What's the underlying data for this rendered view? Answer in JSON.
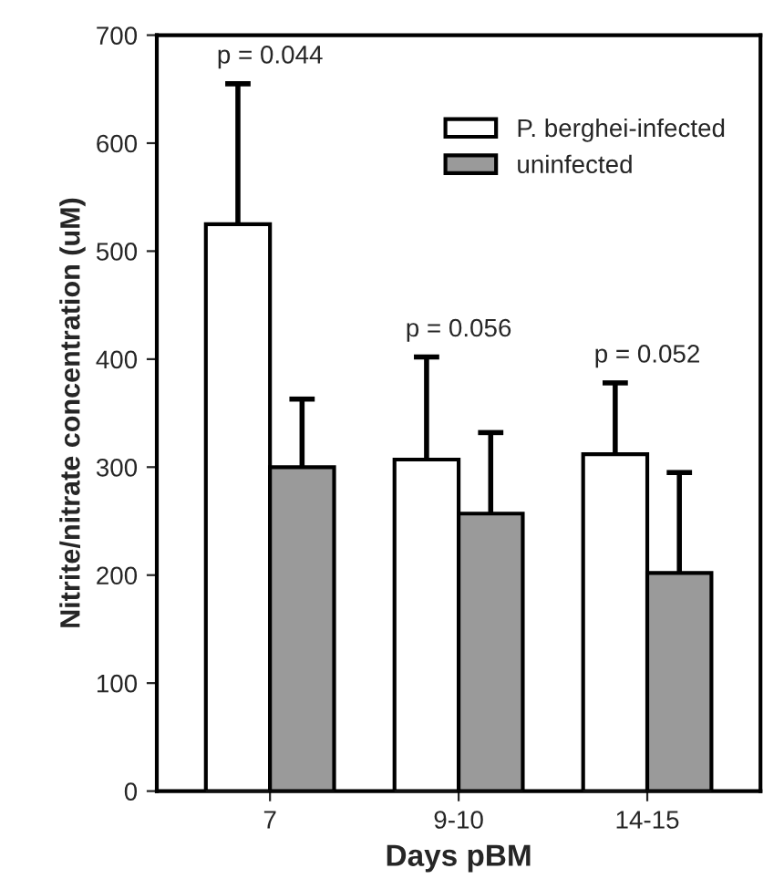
{
  "chart_data": {
    "type": "bar",
    "xlabel": "Days pBM",
    "ylabel": "Nitrite/nitrate concentration (uM)",
    "categories": [
      "7",
      "9-10",
      "14-15"
    ],
    "series": [
      {
        "name": "P. berghei-infected",
        "color": "#ffffff",
        "values": [
          525,
          307,
          312
        ],
        "errors": [
          130,
          95,
          66
        ]
      },
      {
        "name": "uninfected",
        "color": "#9a9a9a",
        "values": [
          300,
          257,
          202
        ],
        "errors": [
          63,
          75,
          93
        ]
      }
    ],
    "ylim": [
      0,
      700
    ],
    "yticks": [
      0,
      100,
      200,
      300,
      400,
      500,
      600,
      700
    ],
    "annotations": [
      "p = 0.044",
      "p = 0.056",
      "p = 0.052"
    ],
    "legend": "top right",
    "grid": false
  }
}
